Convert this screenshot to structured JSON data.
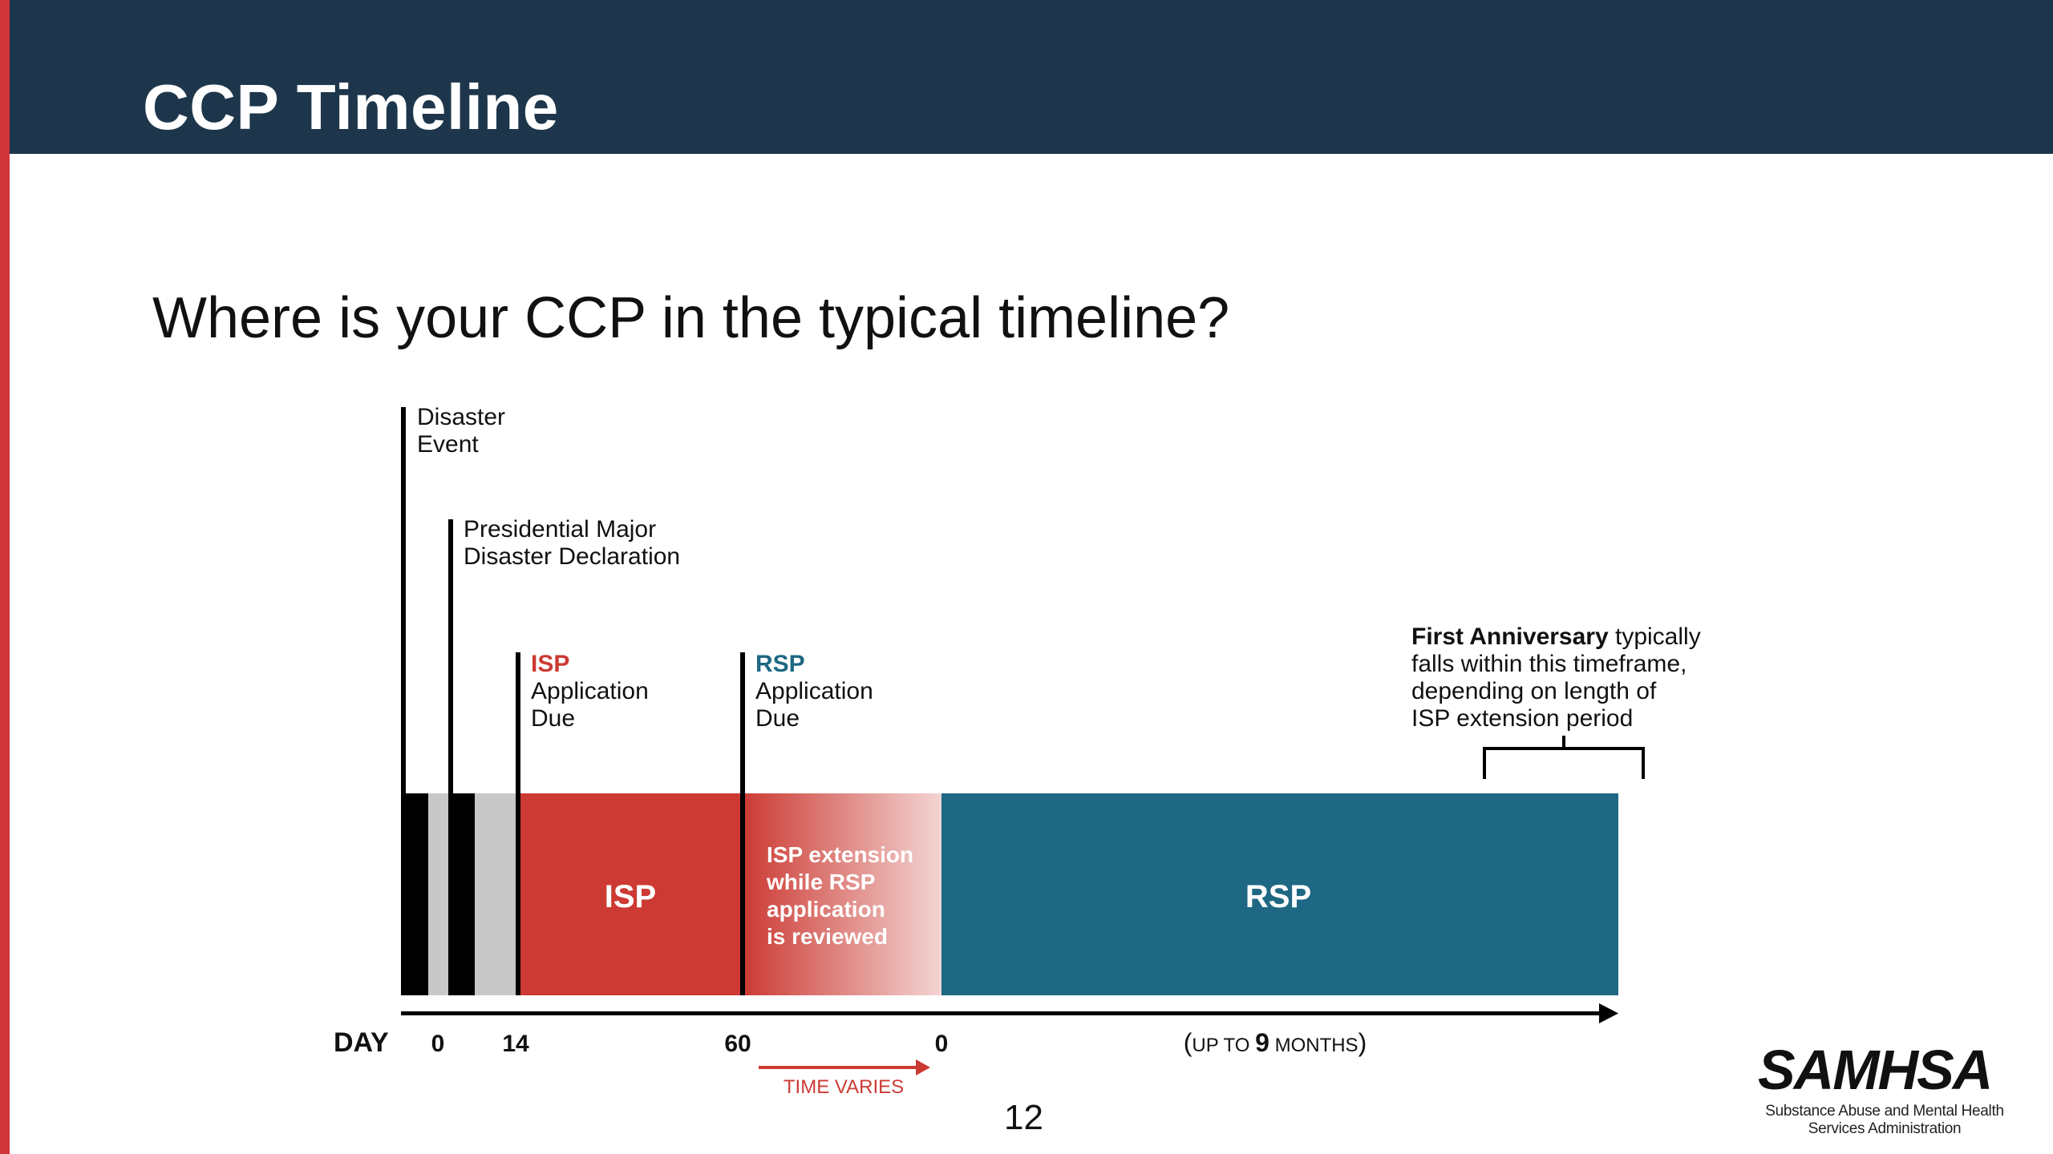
{
  "slide": {
    "title": "CCP Timeline",
    "subtitle": "Where is your CCP in the typical timeline?",
    "page_number": "12"
  },
  "colors": {
    "title_bar": "#1e364b",
    "accent_red": "#d0343a",
    "isp_red": "#cc3a33",
    "rsp_teal": "#1e6883",
    "gray": "#c8c8c8",
    "black": "#000000"
  },
  "markers": {
    "disaster_event": [
      "Disaster",
      "Event"
    ],
    "declaration": [
      "Presidential Major",
      "Disaster Declaration"
    ],
    "isp_due": {
      "label": "ISP",
      "lines": [
        "Application",
        "Due"
      ]
    },
    "rsp_due": {
      "label": "RSP",
      "lines": [
        "Application",
        "Due"
      ]
    }
  },
  "anniversary": {
    "bold": "First Anniversary",
    "first_line_rest": " typically",
    "lines": [
      "falls within this timeframe,",
      "depending on length of",
      "ISP extension period"
    ]
  },
  "bars": {
    "isp_label": "ISP",
    "extension_lines": [
      "ISP extension",
      "while RSP",
      "application",
      "is reviewed"
    ],
    "rsp_label": "RSP"
  },
  "axis": {
    "day_label": "DAY",
    "ticks": [
      "0",
      "14",
      "60",
      "0"
    ],
    "months": {
      "open": "(",
      "up_to": "UP TO ",
      "number": "9",
      "unit": " MONTHS",
      "close": ")"
    },
    "time_varies": "TIME VARIES"
  },
  "logo": {
    "name": "SAMHSA",
    "tagline_lines": [
      "Substance Abuse and Mental Health",
      "Services Administration"
    ]
  }
}
